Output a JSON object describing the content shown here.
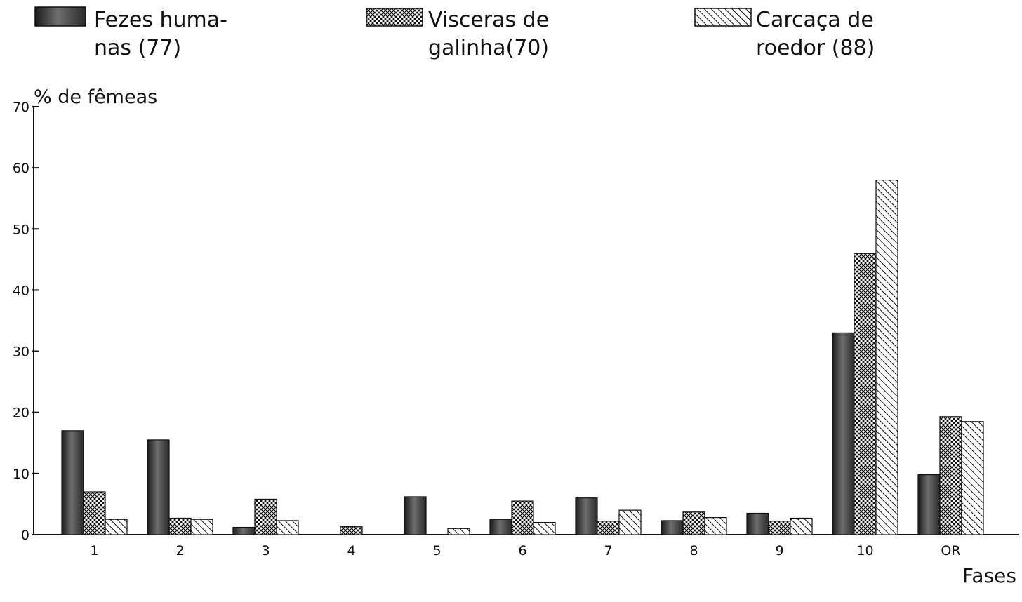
{
  "chart_data": {
    "type": "bar",
    "ylabel": "% de fêmeas",
    "xlabel": "Fases",
    "ylim": [
      0,
      70
    ],
    "yticks": [
      "0",
      "10",
      "20",
      "30",
      "40",
      "50",
      "60",
      "70"
    ],
    "categories": [
      "1",
      "2",
      "3",
      "4",
      "5",
      "6",
      "7",
      "8",
      "9",
      "10",
      "OR"
    ],
    "grid": false,
    "legend_position": "top",
    "series": [
      {
        "name": "Fezes humanas (77)",
        "legend_lines": [
          "Fezes huma-",
          "nas (77)"
        ],
        "color": "#444444",
        "pattern": "solid-dark",
        "values": [
          17.0,
          15.5,
          1.2,
          0,
          6.2,
          2.5,
          6.0,
          2.3,
          3.5,
          33.0,
          9.8
        ]
      },
      {
        "name": "Visceras de galinha(70)",
        "legend_lines": [
          "Visceras de",
          "galinha(70)"
        ],
        "color": "#333333",
        "pattern": "crosshatch",
        "values": [
          7.0,
          2.7,
          5.8,
          1.3,
          0,
          5.5,
          2.2,
          3.7,
          2.2,
          46.0,
          19.3
        ]
      },
      {
        "name": "Carcaça de roedor (88)",
        "legend_lines": [
          "Carcaça de",
          "roedor (88)"
        ],
        "color": "#222222",
        "pattern": "diagonal",
        "values": [
          2.5,
          2.5,
          2.3,
          0,
          1.0,
          2.0,
          4.0,
          2.8,
          2.7,
          58.0,
          18.5
        ]
      }
    ]
  }
}
